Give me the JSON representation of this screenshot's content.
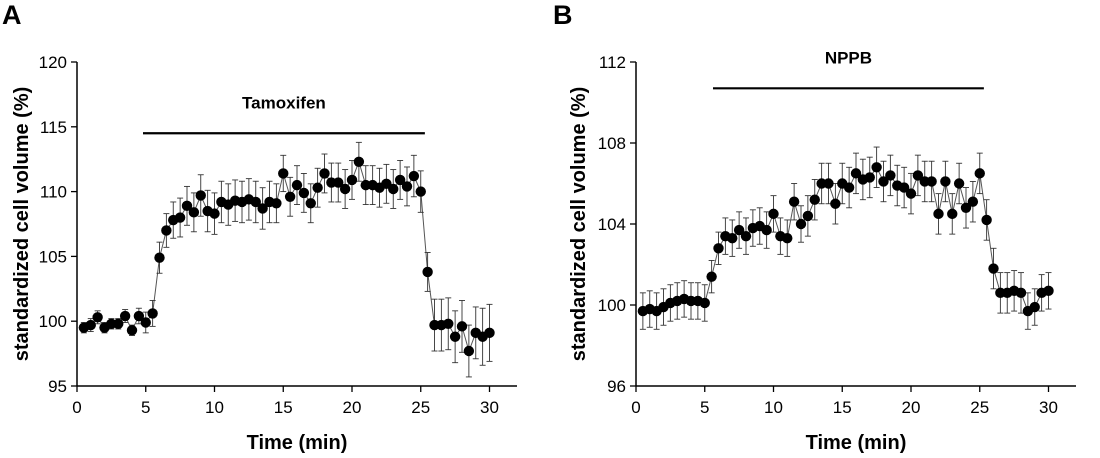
{
  "chart_data": [
    {
      "panel": "A",
      "type": "scatter",
      "xlabel": "Time (min)",
      "ylabel": "standardized cell volume (%)",
      "xlim": [
        0,
        32
      ],
      "ylim": [
        95,
        120
      ],
      "xticks": [
        0,
        5,
        10,
        15,
        20,
        25,
        30
      ],
      "yticks": [
        95,
        100,
        105,
        110,
        115,
        120
      ],
      "grid": false,
      "marker_color": "#000000",
      "annotation": {
        "label": "Tamoxifen",
        "x_start": 4.8,
        "x_end": 25.3,
        "y": 114.5
      },
      "series": [
        {
          "x": [
            0.5,
            1.0,
            1.5,
            2.0,
            2.5,
            3.0,
            3.5,
            4.0,
            4.5,
            5.0,
            5.5,
            6.0,
            6.5,
            7.0,
            7.5,
            8.0,
            8.5,
            9.0,
            9.5,
            10.0,
            10.5,
            11.0,
            11.5,
            12.0,
            12.5,
            13.0,
            13.5,
            14.0,
            14.5,
            15.0,
            15.5,
            16.0,
            16.5,
            17.0,
            17.5,
            18.0,
            18.5,
            19.0,
            19.5,
            20.0,
            20.5,
            21.0,
            21.5,
            22.0,
            22.5,
            23.0,
            23.5,
            24.0,
            24.5,
            25.0,
            25.5,
            26.0,
            26.5,
            27.0,
            27.5,
            28.0,
            28.5,
            29.0,
            29.5,
            30.0
          ],
          "y": [
            99.5,
            99.7,
            100.3,
            99.5,
            99.8,
            99.8,
            100.4,
            99.3,
            100.4,
            99.9,
            100.6,
            104.9,
            107.0,
            107.8,
            108.0,
            108.9,
            108.4,
            109.7,
            108.5,
            108.3,
            109.2,
            109.0,
            109.3,
            109.2,
            109.4,
            109.2,
            108.7,
            109.2,
            109.1,
            111.4,
            109.6,
            110.5,
            109.9,
            109.1,
            110.3,
            111.4,
            110.7,
            110.7,
            110.2,
            110.9,
            112.3,
            110.5,
            110.5,
            110.3,
            110.6,
            110.2,
            110.9,
            110.4,
            111.2,
            110.0,
            103.8,
            99.7,
            99.7,
            99.8,
            98.8,
            99.6,
            97.7,
            99.1,
            98.8,
            99.1
          ],
          "error": [
            0.4,
            0.5,
            0.5,
            0.4,
            0.4,
            0.4,
            0.5,
            0.4,
            0.6,
            0.8,
            1.0,
            1.2,
            1.3,
            1.4,
            1.5,
            1.5,
            1.5,
            1.6,
            1.6,
            1.6,
            1.6,
            1.6,
            1.6,
            1.6,
            1.6,
            1.6,
            1.6,
            1.6,
            1.5,
            1.4,
            1.5,
            1.5,
            1.5,
            1.5,
            1.5,
            1.5,
            1.5,
            1.5,
            1.5,
            1.5,
            1.5,
            1.5,
            1.5,
            1.5,
            1.5,
            1.5,
            1.5,
            1.5,
            1.6,
            1.6,
            1.5,
            2.0,
            2.0,
            2.0,
            2.0,
            2.0,
            2.0,
            2.0,
            2.2,
            2.2
          ]
        }
      ]
    },
    {
      "panel": "B",
      "type": "scatter",
      "xlabel": "Time (min)",
      "ylabel": "standardized cell volume (%)",
      "xlim": [
        0,
        32
      ],
      "ylim": [
        96,
        112
      ],
      "xticks": [
        0,
        5,
        10,
        15,
        20,
        25,
        30
      ],
      "yticks": [
        96,
        100,
        104,
        108,
        112
      ],
      "grid": false,
      "marker_color": "#000000",
      "annotation": {
        "label": "NPPB",
        "x_start": 5.6,
        "x_end": 25.3,
        "y": 110.7
      },
      "series": [
        {
          "x": [
            0.5,
            1.0,
            1.5,
            2.0,
            2.5,
            3.0,
            3.5,
            4.0,
            4.5,
            5.0,
            5.5,
            6.0,
            6.5,
            7.0,
            7.5,
            8.0,
            8.5,
            9.0,
            9.5,
            10.0,
            10.5,
            11.0,
            11.5,
            12.0,
            12.5,
            13.0,
            13.5,
            14.0,
            14.5,
            15.0,
            15.5,
            16.0,
            16.5,
            17.0,
            17.5,
            18.0,
            18.5,
            19.0,
            19.5,
            20.0,
            20.5,
            21.0,
            21.5,
            22.0,
            22.5,
            23.0,
            23.5,
            24.0,
            24.5,
            25.0,
            25.5,
            26.0,
            26.5,
            27.0,
            27.5,
            28.0,
            28.5,
            29.0,
            29.5,
            30.0
          ],
          "y": [
            99.7,
            99.8,
            99.7,
            99.9,
            100.1,
            100.2,
            100.3,
            100.2,
            100.2,
            100.1,
            101.4,
            102.8,
            103.4,
            103.3,
            103.7,
            103.4,
            103.8,
            103.9,
            103.7,
            104.5,
            103.4,
            103.3,
            105.1,
            104.0,
            104.4,
            105.2,
            106.0,
            106.0,
            105.0,
            106.0,
            105.8,
            106.5,
            106.2,
            106.3,
            106.8,
            106.1,
            106.4,
            105.9,
            105.8,
            105.5,
            106.4,
            106.1,
            106.1,
            104.5,
            106.1,
            104.5,
            106.0,
            104.8,
            105.1,
            106.5,
            104.2,
            101.8,
            100.6,
            100.6,
            100.7,
            100.6,
            99.7,
            99.9,
            100.6,
            100.7
          ],
          "error": [
            0.9,
            0.9,
            0.9,
            0.9,
            0.9,
            0.9,
            0.9,
            0.9,
            0.9,
            0.9,
            0.8,
            0.8,
            0.9,
            0.9,
            0.9,
            0.9,
            0.9,
            0.9,
            0.9,
            0.9,
            0.9,
            0.9,
            0.9,
            0.9,
            1.0,
            1.0,
            1.0,
            1.0,
            1.0,
            1.0,
            1.0,
            1.0,
            1.0,
            1.0,
            1.0,
            1.0,
            1.0,
            1.0,
            1.0,
            1.0,
            1.0,
            1.0,
            1.0,
            1.0,
            1.0,
            1.0,
            1.0,
            1.0,
            1.0,
            1.0,
            1.0,
            1.0,
            1.0,
            1.0,
            1.0,
            1.0,
            0.9,
            0.9,
            0.9,
            0.9
          ]
        }
      ]
    }
  ]
}
